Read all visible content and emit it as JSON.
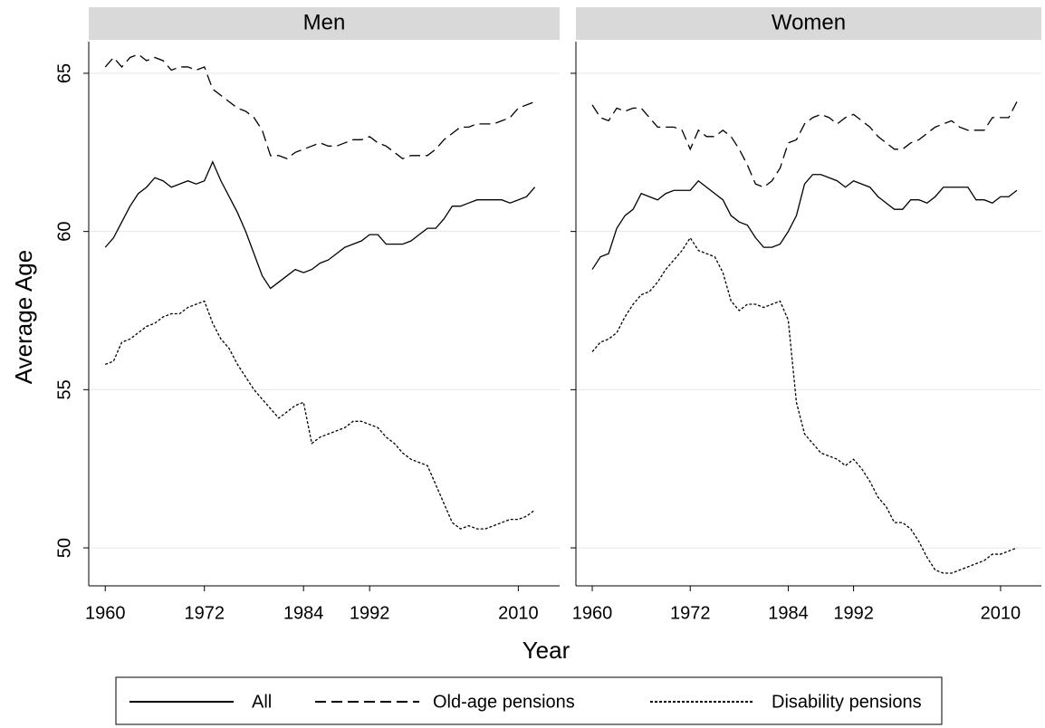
{
  "shared": {
    "x_label": "Year",
    "y_label": "Average Age",
    "legend_position": "bottom"
  },
  "chart_data": [
    {
      "type": "line",
      "title": "Men",
      "x": [
        1960,
        1961,
        1962,
        1963,
        1964,
        1965,
        1966,
        1967,
        1968,
        1969,
        1970,
        1971,
        1972,
        1973,
        1974,
        1975,
        1976,
        1977,
        1978,
        1979,
        1980,
        1981,
        1982,
        1983,
        1984,
        1985,
        1986,
        1987,
        1988,
        1989,
        1990,
        1991,
        1992,
        1993,
        1994,
        1995,
        1996,
        1997,
        1998,
        1999,
        2000,
        2001,
        2002,
        2003,
        2004,
        2005,
        2006,
        2007,
        2008,
        2009,
        2010,
        2011,
        2012
      ],
      "xlim": [
        1958,
        2015
      ],
      "xticks": [
        1960,
        1972,
        1984,
        1992,
        2010
      ],
      "ylim": [
        48.8,
        66
      ],
      "yticks": [
        50,
        55,
        60,
        65
      ],
      "grid": true,
      "series": [
        {
          "name": "All",
          "color": "#000000",
          "dash": "solid",
          "values": [
            59.5,
            59.8,
            60.3,
            60.8,
            61.2,
            61.4,
            61.7,
            61.6,
            61.4,
            61.5,
            61.6,
            61.5,
            61.6,
            62.2,
            61.6,
            61.1,
            60.6,
            60.0,
            59.3,
            58.6,
            58.2,
            58.4,
            58.6,
            58.8,
            58.7,
            58.8,
            59.0,
            59.1,
            59.3,
            59.5,
            59.6,
            59.7,
            59.9,
            59.9,
            59.6,
            59.6,
            59.6,
            59.7,
            59.9,
            60.1,
            60.1,
            60.4,
            60.8,
            60.8,
            60.9,
            61.0,
            61.0,
            61.0,
            61.0,
            60.9,
            61.0,
            61.1,
            61.4
          ]
        },
        {
          "name": "Old-age pensions",
          "color": "#000000",
          "dash": "dashed",
          "values": [
            65.2,
            65.5,
            65.2,
            65.5,
            65.6,
            65.4,
            65.5,
            65.4,
            65.1,
            65.2,
            65.2,
            65.1,
            65.2,
            64.5,
            64.3,
            64.1,
            63.9,
            63.8,
            63.6,
            63.2,
            62.4,
            62.4,
            62.3,
            62.5,
            62.6,
            62.7,
            62.8,
            62.7,
            62.7,
            62.8,
            62.9,
            62.9,
            63.0,
            62.8,
            62.7,
            62.5,
            62.3,
            62.4,
            62.4,
            62.4,
            62.6,
            62.9,
            63.1,
            63.3,
            63.3,
            63.4,
            63.4,
            63.4,
            63.5,
            63.6,
            63.9,
            64.0,
            64.1
          ]
        },
        {
          "name": "Disability pensions",
          "color": "#000000",
          "dash": "dotted",
          "values": [
            55.8,
            55.9,
            56.5,
            56.6,
            56.8,
            57.0,
            57.1,
            57.3,
            57.4,
            57.4,
            57.6,
            57.7,
            57.8,
            57.1,
            56.6,
            56.3,
            55.8,
            55.4,
            55.0,
            54.7,
            54.4,
            54.1,
            54.3,
            54.5,
            54.6,
            53.3,
            53.5,
            53.6,
            53.7,
            53.8,
            54.0,
            54.0,
            53.9,
            53.8,
            53.5,
            53.3,
            53.0,
            52.8,
            52.7,
            52.6,
            52.0,
            51.4,
            50.8,
            50.6,
            50.7,
            50.6,
            50.6,
            50.7,
            50.8,
            50.9,
            50.9,
            51.0,
            51.2
          ]
        }
      ]
    },
    {
      "type": "line",
      "title": "Women",
      "x": [
        1960,
        1961,
        1962,
        1963,
        1964,
        1965,
        1966,
        1967,
        1968,
        1969,
        1970,
        1971,
        1972,
        1973,
        1974,
        1975,
        1976,
        1977,
        1978,
        1979,
        1980,
        1981,
        1982,
        1983,
        1984,
        1985,
        1986,
        1987,
        1988,
        1989,
        1990,
        1991,
        1992,
        1993,
        1994,
        1995,
        1996,
        1997,
        1998,
        1999,
        2000,
        2001,
        2002,
        2003,
        2004,
        2005,
        2006,
        2007,
        2008,
        2009,
        2010,
        2011,
        2012
      ],
      "xlim": [
        1958,
        2015
      ],
      "xticks": [
        1960,
        1972,
        1984,
        1992,
        2010
      ],
      "ylim": [
        48.8,
        66
      ],
      "yticks": [
        50,
        55,
        60,
        65
      ],
      "grid": true,
      "series": [
        {
          "color": "#000000",
          "dash": "solid",
          "values": [
            58.8,
            59.2,
            59.3,
            60.1,
            60.5,
            60.7,
            61.2,
            61.1,
            61.0,
            61.2,
            61.3,
            61.3,
            61.3,
            61.6,
            61.4,
            61.2,
            61.0,
            60.5,
            60.3,
            60.2,
            59.8,
            59.5,
            59.5,
            59.6,
            60.0,
            60.5,
            61.5,
            61.8,
            61.8,
            61.7,
            61.6,
            61.4,
            61.6,
            61.5,
            61.4,
            61.1,
            60.9,
            60.7,
            60.7,
            61.0,
            61.0,
            60.9,
            61.1,
            61.4,
            61.4,
            61.4,
            61.4,
            61.0,
            61.0,
            60.9,
            61.1,
            61.1,
            61.3
          ]
        },
        {
          "color": "#000000",
          "dash": "dashed",
          "values": [
            64.0,
            63.6,
            63.5,
            63.9,
            63.8,
            63.9,
            63.9,
            63.6,
            63.3,
            63.3,
            63.3,
            63.2,
            62.6,
            63.2,
            63.0,
            63.0,
            63.2,
            63.0,
            62.6,
            62.1,
            61.5,
            61.4,
            61.6,
            62.0,
            62.8,
            62.9,
            63.4,
            63.6,
            63.7,
            63.6,
            63.4,
            63.6,
            63.7,
            63.5,
            63.3,
            63.0,
            62.8,
            62.6,
            62.6,
            62.8,
            62.9,
            63.1,
            63.3,
            63.4,
            63.5,
            63.3,
            63.2,
            63.2,
            63.2,
            63.6,
            63.6,
            63.6,
            64.1
          ]
        },
        {
          "color": "#000000",
          "dash": "dotted",
          "values": [
            56.2,
            56.5,
            56.6,
            56.8,
            57.3,
            57.7,
            58.0,
            58.1,
            58.4,
            58.8,
            59.1,
            59.4,
            59.8,
            59.4,
            59.3,
            59.2,
            58.7,
            57.8,
            57.5,
            57.7,
            57.7,
            57.6,
            57.7,
            57.8,
            57.2,
            54.6,
            53.6,
            53.3,
            53.0,
            52.9,
            52.8,
            52.6,
            52.8,
            52.5,
            52.1,
            51.6,
            51.3,
            50.8,
            50.8,
            50.6,
            50.2,
            49.7,
            49.3,
            49.2,
            49.2,
            49.3,
            49.4,
            49.5,
            49.6,
            49.8,
            49.8,
            49.9,
            50.0
          ]
        }
      ]
    }
  ]
}
